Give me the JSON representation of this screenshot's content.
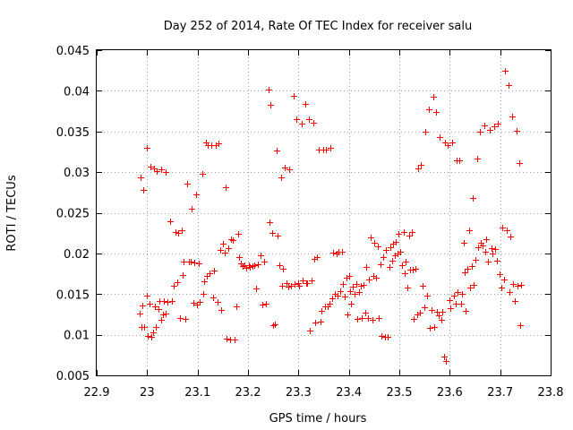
{
  "chart_data": {
    "type": "scatter",
    "title": "Day 252 of 2014, Rate Of TEC Index for receiver salu",
    "xlabel": "GPS time / hours",
    "ylabel": "ROTI / TECUs",
    "xlim": [
      22.9,
      23.8
    ],
    "ylim": [
      0.005,
      0.045
    ],
    "xticks": [
      22.9,
      23.0,
      23.1,
      23.2,
      23.3,
      23.4,
      23.5,
      23.6,
      23.7,
      23.8
    ],
    "xtick_labels": [
      "22.9",
      "23",
      "23.1",
      "23.2",
      "23.3",
      "23.4",
      "23.5",
      "23.6",
      "23.7",
      "23.8"
    ],
    "yticks": [
      0.005,
      0.01,
      0.015,
      0.02,
      0.025,
      0.03,
      0.035,
      0.04,
      0.045
    ],
    "ytick_labels": [
      "0.005",
      "0.01",
      "0.015",
      "0.02",
      "0.025",
      "0.03",
      "0.035",
      "0.04",
      "0.045"
    ],
    "grid": true,
    "marker": "plus",
    "color": "#ff0000",
    "series": [
      {
        "points": [
          [
            22.987,
            0.0293
          ],
          [
            22.992,
            0.0278
          ],
          [
            22.999,
            0.033
          ],
          [
            23.006,
            0.0307
          ],
          [
            23.013,
            0.0305
          ],
          [
            23.019,
            0.0301
          ],
          [
            23.028,
            0.0303
          ],
          [
            23.036,
            0.03
          ],
          [
            22.985,
            0.0126
          ],
          [
            22.988,
            0.0109
          ],
          [
            22.991,
            0.0136
          ],
          [
            22.994,
            0.0109
          ],
          [
            22.999,
            0.0148
          ],
          [
            23.002,
            0.0099
          ],
          [
            23.005,
            0.0138
          ],
          [
            23.008,
            0.0097
          ],
          [
            23.012,
            0.0103
          ],
          [
            23.015,
            0.0135
          ],
          [
            23.018,
            0.011
          ],
          [
            23.022,
            0.0131
          ],
          [
            23.025,
            0.0141
          ],
          [
            23.028,
            0.0118
          ],
          [
            23.031,
            0.0125
          ],
          [
            23.034,
            0.0141
          ],
          [
            23.037,
            0.0126
          ],
          [
            23.04,
            0.014
          ],
          [
            23.045,
            0.0239
          ],
          [
            23.049,
            0.0141
          ],
          [
            23.052,
            0.016
          ],
          [
            23.056,
            0.0226
          ],
          [
            23.059,
            0.0165
          ],
          [
            23.062,
            0.0225
          ],
          [
            23.065,
            0.0121
          ],
          [
            23.068,
            0.0228
          ],
          [
            23.071,
            0.0173
          ],
          [
            23.073,
            0.019
          ],
          [
            23.076,
            0.0119
          ],
          [
            23.08,
            0.0286
          ],
          [
            23.083,
            0.019
          ],
          [
            23.086,
            0.019
          ],
          [
            23.089,
            0.0255
          ],
          [
            23.091,
            0.0139
          ],
          [
            23.094,
            0.0189
          ],
          [
            23.097,
            0.0273
          ],
          [
            23.099,
            0.0137
          ],
          [
            23.102,
            0.0188
          ],
          [
            23.105,
            0.014
          ],
          [
            23.109,
            0.0298
          ],
          [
            23.111,
            0.015
          ],
          [
            23.113,
            0.0166
          ],
          [
            23.116,
            0.0336
          ],
          [
            23.118,
            0.0172
          ],
          [
            23.121,
            0.0333
          ],
          [
            23.124,
            0.0176
          ],
          [
            23.127,
            0.0333
          ],
          [
            23.13,
            0.0146
          ],
          [
            23.133,
            0.0179
          ],
          [
            23.136,
            0.0333
          ],
          [
            23.139,
            0.014
          ],
          [
            23.142,
            0.0335
          ],
          [
            23.145,
            0.0204
          ],
          [
            23.147,
            0.013
          ],
          [
            23.15,
            0.0212
          ],
          [
            23.153,
            0.0201
          ],
          [
            23.156,
            0.0281
          ],
          [
            23.158,
            0.0095
          ],
          [
            23.161,
            0.0207
          ],
          [
            23.164,
            0.0094
          ],
          [
            23.167,
            0.0218
          ],
          [
            23.17,
            0.0216
          ],
          [
            23.173,
            0.0094
          ],
          [
            23.177,
            0.0135
          ],
          [
            23.18,
            0.0224
          ],
          [
            23.183,
            0.0195
          ],
          [
            23.186,
            0.0188
          ],
          [
            23.189,
            0.0184
          ],
          [
            23.193,
            0.0186
          ],
          [
            23.197,
            0.0182
          ],
          [
            23.201,
            0.0186
          ],
          [
            23.204,
            0.0183
          ],
          [
            23.208,
            0.0184
          ],
          [
            23.212,
            0.0186
          ],
          [
            23.216,
            0.0157
          ],
          [
            23.22,
            0.0187
          ],
          [
            23.224,
            0.0198
          ],
          [
            23.228,
            0.0137
          ],
          [
            23.232,
            0.019
          ],
          [
            23.236,
            0.0138
          ],
          [
            23.24,
            0.0402
          ],
          [
            23.242,
            0.0238
          ],
          [
            23.245,
            0.0383
          ],
          [
            23.248,
            0.0225
          ],
          [
            23.25,
            0.0112
          ],
          [
            23.253,
            0.0113
          ],
          [
            23.256,
            0.0327
          ],
          [
            23.259,
            0.0222
          ],
          [
            23.262,
            0.0186
          ],
          [
            23.265,
            0.0293
          ],
          [
            23.267,
            0.016
          ],
          [
            23.27,
            0.0181
          ],
          [
            23.273,
            0.0306
          ],
          [
            23.276,
            0.0163
          ],
          [
            23.279,
            0.0159
          ],
          [
            23.282,
            0.0303
          ],
          [
            23.285,
            0.016
          ],
          [
            23.29,
            0.0394
          ],
          [
            23.293,
            0.0162
          ],
          [
            23.296,
            0.0365
          ],
          [
            23.299,
            0.0163
          ],
          [
            23.302,
            0.016
          ],
          [
            23.306,
            0.036
          ],
          [
            23.309,
            0.0167
          ],
          [
            23.313,
            0.0384
          ],
          [
            23.315,
            0.0163
          ],
          [
            23.318,
            0.0163
          ],
          [
            23.321,
            0.0365
          ],
          [
            23.323,
            0.0105
          ],
          [
            23.326,
            0.0167
          ],
          [
            23.329,
            0.0361
          ],
          [
            23.332,
            0.0193
          ],
          [
            23.334,
            0.0115
          ],
          [
            23.337,
            0.0196
          ],
          [
            23.34,
            0.0328
          ],
          [
            23.343,
            0.0116
          ],
          [
            23.346,
            0.0129
          ],
          [
            23.349,
            0.0328
          ],
          [
            23.352,
            0.0135
          ],
          [
            23.355,
            0.0328
          ],
          [
            23.358,
            0.0135
          ],
          [
            23.361,
            0.0138
          ],
          [
            23.364,
            0.033
          ],
          [
            23.367,
            0.0145
          ],
          [
            23.369,
            0.0201
          ],
          [
            23.372,
            0.015
          ],
          [
            23.375,
            0.02
          ],
          [
            23.378,
            0.0148
          ],
          [
            23.38,
            0.0202
          ],
          [
            23.383,
            0.0154
          ],
          [
            23.386,
            0.0202
          ],
          [
            23.389,
            0.0162
          ],
          [
            23.392,
            0.0147
          ],
          [
            23.395,
            0.017
          ],
          [
            23.397,
            0.0125
          ],
          [
            23.4,
            0.0172
          ],
          [
            23.403,
            0.0154
          ],
          [
            23.405,
            0.0138
          ],
          [
            23.408,
            0.0159
          ],
          [
            23.411,
            0.015
          ],
          [
            23.414,
            0.0162
          ],
          [
            23.417,
            0.0119
          ],
          [
            23.42,
            0.0152
          ],
          [
            23.423,
            0.016
          ],
          [
            23.426,
            0.012
          ],
          [
            23.429,
            0.0161
          ],
          [
            23.432,
            0.0127
          ],
          [
            23.435,
            0.0183
          ],
          [
            23.437,
            0.0121
          ],
          [
            23.44,
            0.0168
          ],
          [
            23.443,
            0.022
          ],
          [
            23.446,
            0.0118
          ],
          [
            23.449,
            0.0172
          ],
          [
            23.451,
            0.0213
          ],
          [
            23.454,
            0.017
          ],
          [
            23.457,
            0.0209
          ],
          [
            23.46,
            0.012
          ],
          [
            23.463,
            0.0187
          ],
          [
            23.465,
            0.0099
          ],
          [
            23.468,
            0.0196
          ],
          [
            23.471,
            0.0097
          ],
          [
            23.474,
            0.0204
          ],
          [
            23.477,
            0.0097
          ],
          [
            23.48,
            0.0183
          ],
          [
            23.482,
            0.0208
          ],
          [
            23.485,
            0.0191
          ],
          [
            23.488,
            0.0212
          ],
          [
            23.491,
            0.0198
          ],
          [
            23.493,
            0.0214
          ],
          [
            23.496,
            0.02
          ],
          [
            23.499,
            0.0224
          ],
          [
            23.502,
            0.0202
          ],
          [
            23.505,
            0.0186
          ],
          [
            23.508,
            0.0226
          ],
          [
            23.51,
            0.0176
          ],
          [
            23.513,
            0.019
          ],
          [
            23.516,
            0.0158
          ],
          [
            23.519,
            0.0222
          ],
          [
            23.522,
            0.018
          ],
          [
            23.524,
            0.0226
          ],
          [
            23.527,
            0.018
          ],
          [
            23.529,
            0.0119
          ],
          [
            23.532,
            0.0181
          ],
          [
            23.535,
            0.0125
          ],
          [
            23.537,
            0.0304
          ],
          [
            23.54,
            0.0127
          ],
          [
            23.543,
            0.0309
          ],
          [
            23.546,
            0.016
          ],
          [
            23.549,
            0.0134
          ],
          [
            23.552,
            0.035
          ],
          [
            23.555,
            0.0148
          ],
          [
            23.558,
            0.0377
          ],
          [
            23.561,
            0.0108
          ],
          [
            23.564,
            0.013
          ],
          [
            23.567,
            0.0393
          ],
          [
            23.57,
            0.0109
          ],
          [
            23.572,
            0.0374
          ],
          [
            23.575,
            0.0128
          ],
          [
            23.578,
            0.0124
          ],
          [
            23.58,
            0.0343
          ],
          [
            23.583,
            0.0118
          ],
          [
            23.586,
            0.0128
          ],
          [
            23.588,
            0.0073
          ],
          [
            23.591,
            0.0337
          ],
          [
            23.593,
            0.0068
          ],
          [
            23.596,
            0.0333
          ],
          [
            23.599,
            0.0143
          ],
          [
            23.602,
            0.0133
          ],
          [
            23.605,
            0.0337
          ],
          [
            23.608,
            0.0148
          ],
          [
            23.611,
            0.0138
          ],
          [
            23.613,
            0.0314
          ],
          [
            23.616,
            0.0152
          ],
          [
            23.619,
            0.0314
          ],
          [
            23.622,
            0.0138
          ],
          [
            23.624,
            0.015
          ],
          [
            23.627,
            0.0213
          ],
          [
            23.63,
            0.0177
          ],
          [
            23.632,
            0.0129
          ],
          [
            23.635,
            0.0181
          ],
          [
            23.638,
            0.0229
          ],
          [
            23.64,
            0.0158
          ],
          [
            23.643,
            0.0184
          ],
          [
            23.645,
            0.0268
          ],
          [
            23.648,
            0.0161
          ],
          [
            23.651,
            0.0192
          ],
          [
            23.654,
            0.0317
          ],
          [
            23.656,
            0.0208
          ],
          [
            23.659,
            0.035
          ],
          [
            23.662,
            0.0213
          ],
          [
            23.665,
            0.021
          ],
          [
            23.668,
            0.0357
          ],
          [
            23.671,
            0.0202
          ],
          [
            23.673,
            0.0217
          ],
          [
            23.676,
            0.019
          ],
          [
            23.679,
            0.0352
          ],
          [
            23.682,
            0.0206
          ],
          [
            23.685,
            0.02
          ],
          [
            23.688,
            0.0356
          ],
          [
            23.69,
            0.0205
          ],
          [
            23.693,
            0.0191
          ],
          [
            23.696,
            0.036
          ],
          [
            23.699,
            0.0174
          ],
          [
            23.702,
            0.0158
          ],
          [
            23.704,
            0.0232
          ],
          [
            23.707,
            0.0168
          ],
          [
            23.71,
            0.0425
          ],
          [
            23.713,
            0.0229
          ],
          [
            23.716,
            0.0407
          ],
          [
            23.718,
            0.0152
          ],
          [
            23.721,
            0.0221
          ],
          [
            23.724,
            0.0368
          ],
          [
            23.726,
            0.0162
          ],
          [
            23.729,
            0.0142
          ],
          [
            23.732,
            0.0351
          ],
          [
            23.735,
            0.016
          ],
          [
            23.738,
            0.0311
          ],
          [
            23.74,
            0.0112
          ],
          [
            23.742,
            0.0161
          ]
        ]
      }
    ]
  }
}
